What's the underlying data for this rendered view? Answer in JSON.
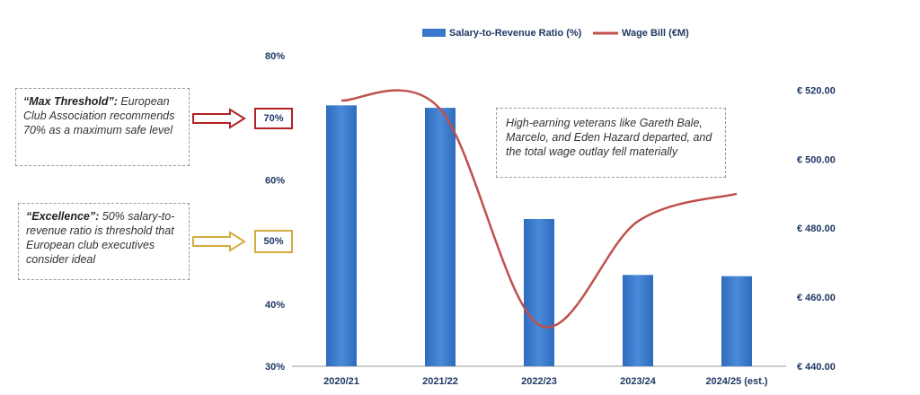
{
  "chart_data": {
    "type": "bar+line",
    "categories": [
      "2020/21",
      "2021/22",
      "2022/23",
      "2023/24",
      "2024/25 (est.)"
    ],
    "series": [
      {
        "name": "Salary-to-Revenue Ratio (%)",
        "type": "bar",
        "axis": "left",
        "color": "#3a78c9",
        "values": [
          72,
          71.6,
          53.7,
          44.7,
          44.5
        ]
      },
      {
        "name": "Wage Bill (€M)",
        "type": "line",
        "axis": "right",
        "color": "#c0504d",
        "values": [
          517,
          514.5,
          452,
          482,
          490
        ]
      }
    ],
    "y_left": {
      "ylim": [
        30,
        80
      ],
      "ticks": [
        "30%",
        "40%",
        "50%",
        "60%",
        "70%",
        "80%"
      ]
    },
    "y_right": {
      "ylim": [
        440,
        530
      ],
      "ticks": [
        "€ 440.00",
        "€ 460.00",
        "€ 480.00",
        "€ 500.00",
        "€ 520.00"
      ]
    },
    "legend": "top",
    "grid": false
  },
  "annotations": {
    "max": {
      "title": "“Max Threshold”:",
      "body": " European Club Association recommends 70% as a maximum safe level",
      "marker": "70%"
    },
    "excellence": {
      "title": "“Excellence”:",
      "body": " 50% salary-to-revenue ratio is  threshold that European club executives consider ideal",
      "marker": "50%"
    },
    "veterans": "High-earning veterans like Gareth Bale, Marcelo, and Eden Hazard departed, and the total wage outlay fell materially"
  },
  "colors": {
    "bar": "#3a78c9",
    "line": "#c0504d",
    "max_arrow": "#b22222",
    "excellence_arrow": "#d4ac3c",
    "axis_text": "#1f3864"
  }
}
